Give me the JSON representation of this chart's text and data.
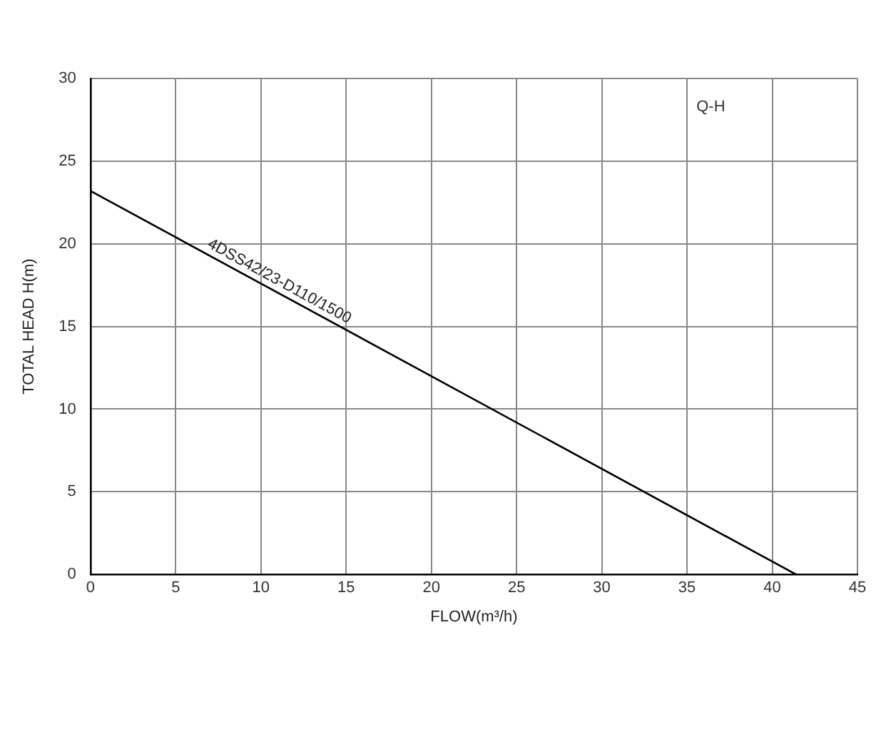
{
  "chart_data": {
    "type": "line",
    "xlabel": "FLOW(m³/h)",
    "ylabel": "TOTAL HEAD H(m)",
    "x": [
      0,
      41.4
    ],
    "series": [
      {
        "name": "4DSS42/23-D110/1500",
        "color": "#000000",
        "values": [
          23.2,
          0
        ]
      }
    ],
    "xlim": [
      0,
      45
    ],
    "xticks": [
      0,
      5,
      10,
      15,
      20,
      25,
      30,
      35,
      40,
      45
    ],
    "ylim": [
      0,
      30
    ],
    "yticks": [
      0,
      5,
      10,
      15,
      20,
      25,
      30
    ],
    "grid": true,
    "legend": false,
    "marker": "none",
    "line_style": "solid",
    "annotations": [
      "Q-H"
    ]
  }
}
